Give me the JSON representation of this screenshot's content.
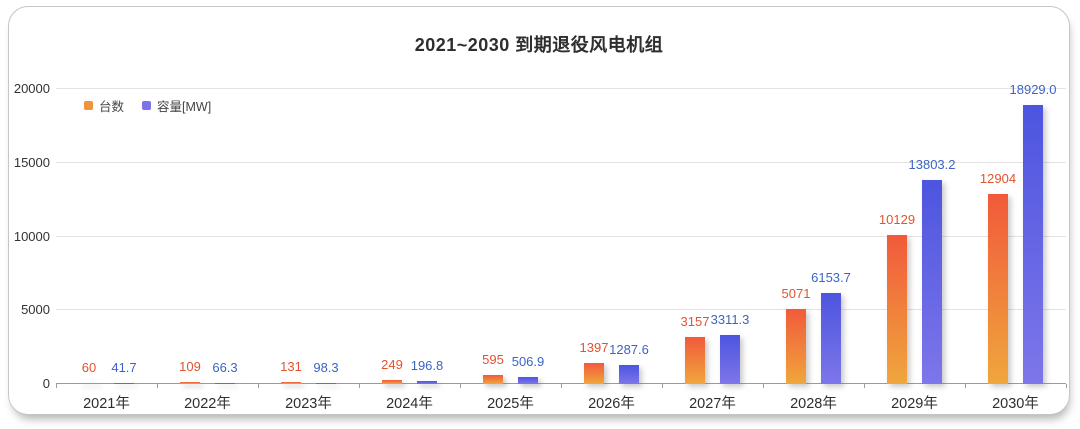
{
  "chart_data": {
    "type": "bar",
    "title": "2021~2030 到期退役风电机组",
    "categories": [
      "2021年",
      "2022年",
      "2023年",
      "2024年",
      "2025年",
      "2026年",
      "2027年",
      "2028年",
      "2029年",
      "2030年"
    ],
    "series": [
      {
        "name": "台数",
        "values": [
          60,
          109,
          131,
          249,
          595,
          1397,
          3157,
          5071,
          10129,
          12904
        ],
        "value_labels": [
          "60",
          "109",
          "131",
          "249",
          "595",
          "1397",
          "3157",
          "5071",
          "10129",
          "12904"
        ],
        "bar_color_top": "#f15a3b",
        "bar_color_bottom": "#f0a63d",
        "label_color": "#e4522e",
        "legend_color": "#f0923e"
      },
      {
        "name": "容量[MW]",
        "values": [
          41.7,
          66.3,
          98.3,
          196.8,
          506.9,
          1287.6,
          3311.3,
          6153.7,
          13803.2,
          18929.0
        ],
        "value_labels": [
          "41.7",
          "66.3",
          "98.3",
          "196.8",
          "506.9",
          "1287.6",
          "3311.3",
          "6153.7",
          "13803.2",
          "18929.0"
        ],
        "bar_color_top": "#4c55df",
        "bar_color_bottom": "#7e76ea",
        "label_color": "#3c64c6",
        "legend_color": "#7a73e9"
      }
    ],
    "ylim": [
      0,
      20000
    ],
    "yticks": [
      0,
      5000,
      10000,
      15000,
      20000
    ],
    "ytick_labels": [
      "0",
      "5000",
      "10000",
      "15000",
      "20000"
    ],
    "grid": true,
    "legend_position": "top-left",
    "xlabel": "",
    "ylabel": ""
  }
}
